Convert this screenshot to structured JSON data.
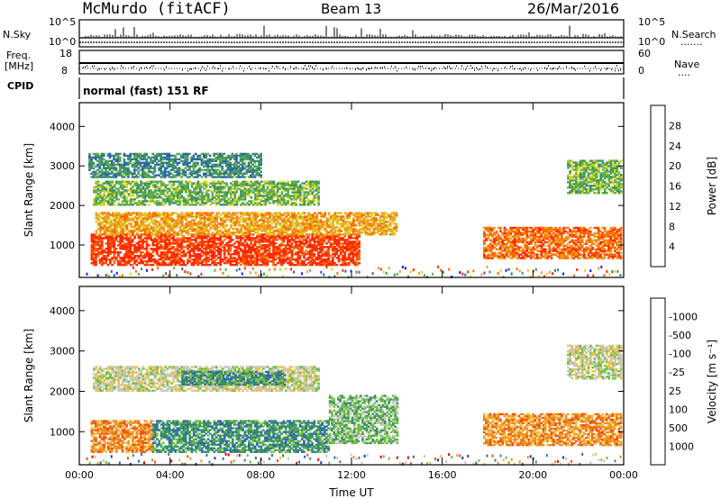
{
  "header": {
    "station": "McMurdo (fitACF)",
    "beam": "Beam 13",
    "date": "26/Mar/2016"
  },
  "strip": {
    "nsky_label": "N.Sky",
    "nsky_ticks": [
      "10^5",
      "10^0"
    ],
    "nsearch_label": "N.Search",
    "nsearch_ticks": [
      "10^5",
      "10^0"
    ],
    "freq_label": "Freq.",
    "freq_unit": "[MHz]",
    "freq_ticks": [
      "18",
      "8"
    ],
    "nave_label": "Nave",
    "nave_ticks": [
      "60",
      "0"
    ],
    "cpid_label": "CPID",
    "cpid_text": "normal (fast) 151 RF"
  },
  "chart_data": [
    {
      "type": "heatmap",
      "title": "",
      "ylabel": "Slant Range [km]",
      "xlabel": "",
      "x_ticks": [
        "00:00",
        "04:00",
        "08:00",
        "12:00",
        "16:00",
        "20:00",
        "00:00"
      ],
      "y_ticks": [
        1000,
        2000,
        3000,
        4000
      ],
      "ylim": [
        180,
        4600
      ],
      "xlim_hours": [
        0,
        24
      ],
      "colorbar": {
        "label": "Power [dB]",
        "ticks": [
          "4",
          "8",
          "12",
          "16",
          "20",
          "24",
          "28"
        ],
        "colors": [
          "#1a1aff",
          "#2d5fbd",
          "#3a8f6a",
          "#5fae4a",
          "#d7d51d",
          "#f0a020",
          "#ff6a00",
          "#ff2a00"
        ]
      },
      "regions": [
        {
          "t0": 0.5,
          "t1": 12.3,
          "r0": 480,
          "r1": 1250,
          "level": 7
        },
        {
          "t0": 0.7,
          "t1": 14.0,
          "r0": 1250,
          "r1": 1800,
          "level": 5
        },
        {
          "t0": 0.6,
          "t1": 10.5,
          "r0": 2000,
          "r1": 2600,
          "level": 3
        },
        {
          "t0": 0.4,
          "t1": 8.0,
          "r0": 2700,
          "r1": 3300,
          "level": 2
        },
        {
          "t0": 17.8,
          "t1": 23.9,
          "r0": 650,
          "r1": 1450,
          "level": 6
        },
        {
          "t0": 21.5,
          "t1": 23.9,
          "r0": 2300,
          "r1": 3150,
          "level": 3
        }
      ]
    },
    {
      "type": "heatmap",
      "title": "",
      "ylabel": "Slant Range [km]",
      "xlabel": "Time UT",
      "x_ticks": [
        "00:00",
        "04:00",
        "08:00",
        "12:00",
        "16:00",
        "20:00",
        "00:00"
      ],
      "y_ticks": [
        1000,
        2000,
        3000,
        4000
      ],
      "ylim": [
        180,
        4600
      ],
      "xlim_hours": [
        0,
        24
      ],
      "colorbar": {
        "label": "Velocity [m s^-1]",
        "ticks": [
          "1000",
          "500",
          "100",
          "25",
          "-25",
          "-100",
          "-500",
          "-1000"
        ],
        "colors": [
          "#1a3ab0",
          "#2f6ab0",
          "#3a8f6a",
          "#70c040",
          "#c8c8c0",
          "#f0c040",
          "#f09020",
          "#f05010",
          "#e00000"
        ]
      },
      "regions": [
        {
          "t0": 0.5,
          "t1": 3.2,
          "r0": 480,
          "r1": 1250,
          "level": 6
        },
        {
          "t0": 3.2,
          "t1": 11.0,
          "r0": 480,
          "r1": 1250,
          "level": 2
        },
        {
          "t0": 11.0,
          "t1": 14.0,
          "r0": 700,
          "r1": 1900,
          "level": 3
        },
        {
          "t0": 0.6,
          "t1": 10.5,
          "r0": 2000,
          "r1": 2600,
          "level": 4
        },
        {
          "t0": 4.5,
          "t1": 9.0,
          "r0": 2150,
          "r1": 2500,
          "level": 2
        },
        {
          "t0": 17.8,
          "t1": 23.9,
          "r0": 650,
          "r1": 1450,
          "level": 6
        },
        {
          "t0": 21.5,
          "t1": 23.9,
          "r0": 2300,
          "r1": 3150,
          "level": 4
        }
      ]
    }
  ]
}
